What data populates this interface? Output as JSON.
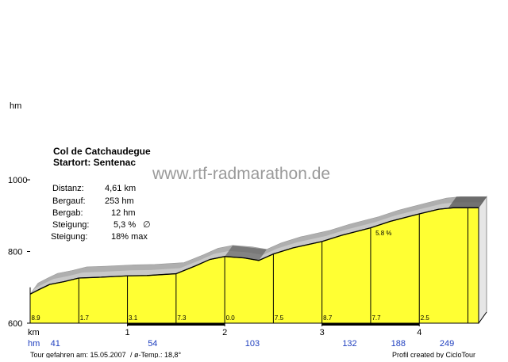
{
  "header": {
    "title": "Col de Catchaudegue",
    "start": "Startort: Sentenac"
  },
  "watermark": "www.rtf-radmarathon.de",
  "stats": [
    {
      "label": "Distanz:",
      "value": "4,61 km"
    },
    {
      "label": "Bergauf:",
      "value": "253 hm"
    },
    {
      "label": "Bergab:",
      "value": "12 hm"
    },
    {
      "label": "Steigung:",
      "value": "5,3 %",
      "symbol": "∅"
    },
    {
      "label": "Steigung:",
      "value": "18%  max"
    }
  ],
  "axis": {
    "y_unit": "hm",
    "x_unit": "km",
    "row_unit": "hm"
  },
  "footer": {
    "date": "Tour gefahren am: 15.05.2007",
    "temp": "/  ø-Temp.: 18,8°",
    "credit": "Profil created by CicloTour"
  },
  "chart_data": {
    "type": "area",
    "ylim": [
      600,
      1000
    ],
    "yticks": [
      600,
      800,
      1000
    ],
    "xlim": [
      0,
      4.61
    ],
    "xticks": [
      1,
      2,
      3,
      4
    ],
    "profile": [
      {
        "km": 0.0,
        "hm": 681
      },
      {
        "km": 0.1,
        "hm": 695
      },
      {
        "km": 0.2,
        "hm": 708
      },
      {
        "km": 0.35,
        "hm": 716
      },
      {
        "km": 0.5,
        "hm": 726
      },
      {
        "km": 0.7,
        "hm": 728
      },
      {
        "km": 1.0,
        "hm": 732
      },
      {
        "km": 1.2,
        "hm": 733
      },
      {
        "km": 1.5,
        "hm": 738
      },
      {
        "km": 1.7,
        "hm": 760
      },
      {
        "km": 1.85,
        "hm": 778
      },
      {
        "km": 2.0,
        "hm": 786
      },
      {
        "km": 2.2,
        "hm": 782
      },
      {
        "km": 2.35,
        "hm": 775
      },
      {
        "km": 2.5,
        "hm": 793
      },
      {
        "km": 2.7,
        "hm": 810
      },
      {
        "km": 3.0,
        "hm": 828
      },
      {
        "km": 3.2,
        "hm": 845
      },
      {
        "km": 3.5,
        "hm": 866
      },
      {
        "km": 3.7,
        "hm": 884
      },
      {
        "km": 4.0,
        "hm": 905
      },
      {
        "km": 4.2,
        "hm": 918
      },
      {
        "km": 4.35,
        "hm": 922
      },
      {
        "km": 4.61,
        "hm": 922
      }
    ],
    "segments": [
      {
        "start_km": 0.0,
        "end_km": 0.5,
        "gradient": "8.9",
        "hm": "41"
      },
      {
        "start_km": 0.5,
        "end_km": 1.0,
        "gradient": "1.7",
        "hm": ""
      },
      {
        "start_km": 1.0,
        "end_km": 1.5,
        "gradient": "3.1",
        "hm": "54"
      },
      {
        "start_km": 1.5,
        "end_km": 2.0,
        "gradient": "7.3",
        "hm": ""
      },
      {
        "start_km": 2.0,
        "end_km": 2.5,
        "gradient": "0.0",
        "hm": "103"
      },
      {
        "start_km": 2.5,
        "end_km": 3.0,
        "gradient": "7.5",
        "hm": ""
      },
      {
        "start_km": 3.0,
        "end_km": 3.5,
        "gradient": "8.7",
        "hm": "132"
      },
      {
        "start_km": 3.5,
        "end_km": 4.0,
        "gradient": "7.7",
        "hm": "188"
      },
      {
        "start_km": 4.0,
        "end_km": 4.5,
        "gradient": "2.5",
        "hm": "249"
      },
      {
        "start_km": 4.5,
        "end_km": 4.61,
        "gradient": "",
        "hm": ""
      }
    ],
    "annotations": [
      {
        "km": 3.55,
        "hm": 872,
        "text": "5.8 %"
      }
    ],
    "colors": {
      "fill": "#ffff33",
      "grid": "#000000",
      "shade": "#c8c8c8",
      "dark": "#555555"
    }
  }
}
